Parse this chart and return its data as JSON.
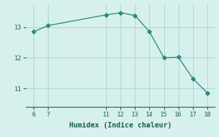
{
  "x": [
    6,
    7,
    11,
    12,
    13,
    14,
    15,
    16,
    17,
    18
  ],
  "y": [
    12.85,
    13.05,
    13.4,
    13.47,
    13.38,
    12.85,
    12.0,
    12.02,
    11.32,
    10.85
  ],
  "xlabel": "Humidex (Indice chaleur)",
  "xlim": [
    5.5,
    18.5
  ],
  "ylim": [
    10.4,
    13.75
  ],
  "xticks": [
    6,
    7,
    11,
    12,
    13,
    14,
    15,
    16,
    17,
    18
  ],
  "yticks": [
    11,
    12,
    13
  ],
  "line_color": "#2e8b7a",
  "marker_color": "#2e8b7a",
  "bg_color": "#d6f0ee",
  "grid_color": "#aacfca",
  "label_color": "#1a5c50",
  "font_family": "monospace",
  "tick_fontsize": 6.5,
  "xlabel_fontsize": 7.5,
  "linewidth": 1.0,
  "markersize": 3.0
}
